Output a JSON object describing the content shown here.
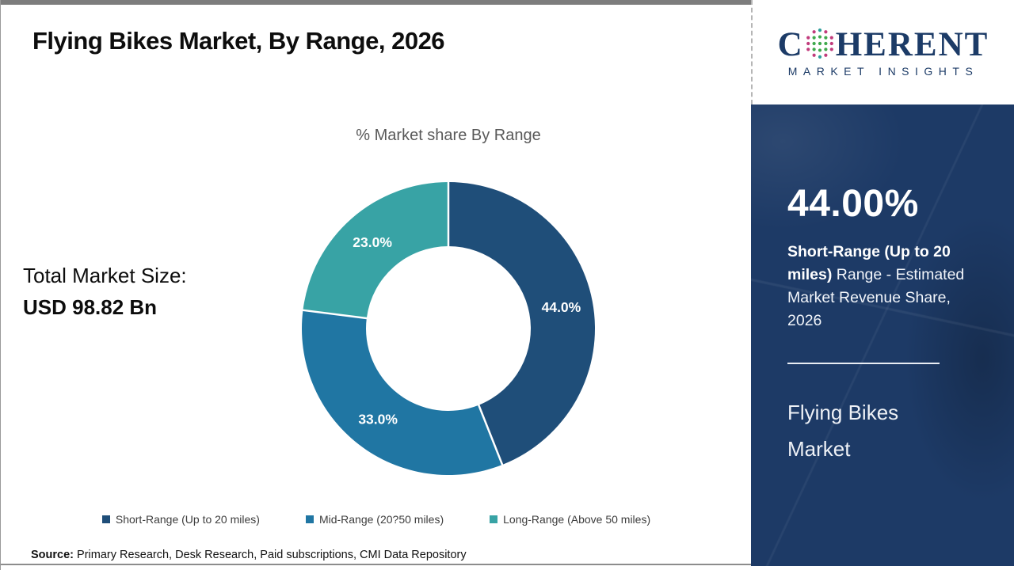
{
  "header": {
    "title": "Flying Bikes Market, By Range, 2026"
  },
  "logo": {
    "word_start": "C",
    "word_end": "HERENT",
    "subtitle": "MARKET INSIGHTS",
    "navy": "#1c3b67"
  },
  "stat": {
    "label": "Total Market Size:",
    "value": "USD 98.82 Bn"
  },
  "chart_data": {
    "type": "pie",
    "subtype": "donut",
    "title": "% Market share By Range",
    "start_angle_deg": 0,
    "direction": "clockwise",
    "legend_position": "bottom",
    "segments": [
      {
        "label": "Short-Range (Up to 20 miles)",
        "value": 44.0,
        "display": "44.0%",
        "color": "#1f4e79"
      },
      {
        "label": "Mid-Range (20?50 miles)",
        "value": 33.0,
        "display": "33.0%",
        "color": "#2076a3"
      },
      {
        "label": "Long-Range (Above 50 miles)",
        "value": 23.0,
        "display": "23.0%",
        "color": "#38a3a5"
      }
    ]
  },
  "sidebar": {
    "headline_value": "44.00%",
    "desc_bold": "Short-Range (Up to 20 miles)",
    "desc_rest": " Range - Estimated Market Revenue Share, 2026",
    "footer_line1": "Flying Bikes",
    "footer_line2": "Market",
    "background": "#1d3a66"
  },
  "source": {
    "label": "Source:",
    "text": " Primary Research, Desk Research, Paid subscriptions, CMI Data Repository"
  }
}
